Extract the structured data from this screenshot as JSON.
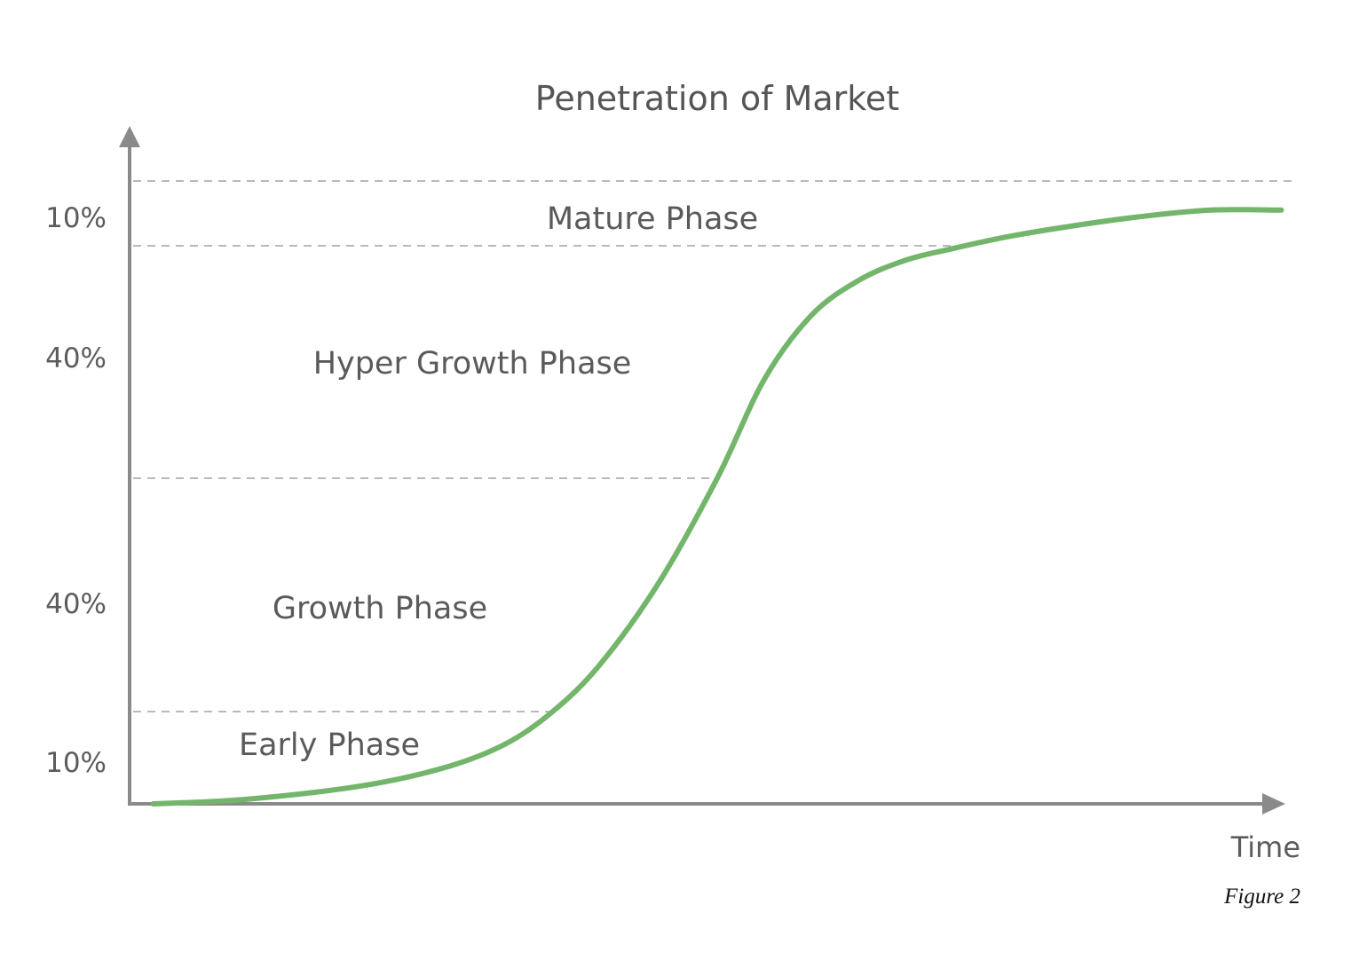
{
  "chart_data": {
    "type": "line",
    "title": "Penetration of Market",
    "xlabel": "Time",
    "ylabel": "",
    "caption": "Figure 2",
    "y_tick_labels": [
      "10%",
      "40%",
      "40%",
      "10%"
    ],
    "grid": false,
    "legend": "none",
    "series_color": "#73b66b",
    "phase_boundaries": [
      0,
      10,
      50,
      90,
      100
    ],
    "phases": [
      {
        "name": "Early Phase",
        "from": 0,
        "to": 10
      },
      {
        "name": "Growth Phase",
        "from": 10,
        "to": 50
      },
      {
        "name": "Hyper Growth Phase",
        "from": 50,
        "to": 90
      },
      {
        "name": "Mature Phase",
        "from": 90,
        "to": 100
      }
    ],
    "xlim": [
      0,
      100
    ],
    "ylim": [
      0,
      100
    ],
    "series": [
      {
        "x": [
          2,
          10,
          20,
          27,
          32,
          36,
          40,
          45,
          50,
          54,
          58,
          62,
          66,
          70,
          75,
          80,
          86,
          92,
          98
        ],
        "y": [
          0,
          0.5,
          2,
          4,
          6.5,
          10,
          18,
          32,
          50,
          67,
          78,
          84,
          87.5,
          89.5,
          91.5,
          93,
          94.5,
          95.5,
          95.5
        ]
      }
    ]
  }
}
